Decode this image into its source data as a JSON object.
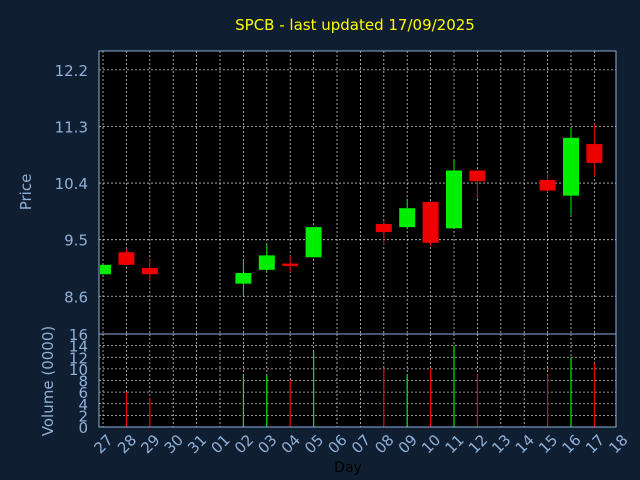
{
  "chart_data": {
    "type": "candlestick",
    "title": "SPCB - last updated 17/09/2025",
    "xlabel": "Day",
    "ylabel_price": "Price",
    "ylabel_volume": "Volume (0000)",
    "x_ticks": [
      "27",
      "28",
      "29",
      "30",
      "31",
      "01",
      "02",
      "03",
      "04",
      "05",
      "06",
      "07",
      "08",
      "09",
      "10",
      "11",
      "12",
      "13",
      "14",
      "15",
      "16",
      "17",
      "18"
    ],
    "price_ticks": [
      "8.6",
      "9.5",
      "10.4",
      "11.3",
      "12.2"
    ],
    "volume_ticks": [
      "0",
      "2",
      "4",
      "6",
      "8",
      "10",
      "12",
      "14",
      "16"
    ],
    "price_range": [
      8.0,
      12.5
    ],
    "volume_range": [
      0,
      16
    ],
    "colors": {
      "up": "#00ee00",
      "down": "#ee0000",
      "title": "#ffff00",
      "axis_text": "#8fb0d8",
      "grid": "#c8c8c8",
      "frame": "#8fb0d8"
    },
    "candles": [
      {
        "day": "27",
        "open": 8.95,
        "high": 9.1,
        "low": 8.95,
        "close": 9.1,
        "volume": 0
      },
      {
        "day": "28",
        "open": 9.3,
        "high": 9.35,
        "low": 9.1,
        "close": 9.1,
        "volume": 6
      },
      {
        "day": "29",
        "open": 9.05,
        "high": 9.2,
        "low": 8.85,
        "close": 8.95,
        "volume": 5
      },
      {
        "day": "02",
        "open": 8.8,
        "high": 9.2,
        "low": 8.6,
        "close": 8.97,
        "volume": 9
      },
      {
        "day": "03",
        "open": 9.02,
        "high": 9.42,
        "low": 9.0,
        "close": 9.25,
        "volume": 9
      },
      {
        "day": "04",
        "open": 9.12,
        "high": 9.25,
        "low": 8.98,
        "close": 9.08,
        "volume": 8
      },
      {
        "day": "05",
        "open": 9.22,
        "high": 9.7,
        "low": 9.22,
        "close": 9.7,
        "volume": 13
      },
      {
        "day": "08",
        "open": 9.75,
        "high": 9.8,
        "low": 9.42,
        "close": 9.62,
        "volume": 10
      },
      {
        "day": "09",
        "open": 9.7,
        "high": 10.15,
        "low": 9.68,
        "close": 10.0,
        "volume": 9
      },
      {
        "day": "10",
        "open": 10.1,
        "high": 10.1,
        "low": 9.4,
        "close": 9.45,
        "volume": 10
      },
      {
        "day": "11",
        "open": 9.68,
        "high": 10.75,
        "low": 9.68,
        "close": 10.6,
        "volume": 14
      },
      {
        "day": "12",
        "open": 10.6,
        "high": 10.6,
        "low": 10.15,
        "close": 10.43,
        "volume": 9
      },
      {
        "day": "15",
        "open": 10.45,
        "high": 10.55,
        "low": 10.25,
        "close": 10.28,
        "volume": 9
      },
      {
        "day": "16",
        "open": 10.2,
        "high": 11.28,
        "low": 9.9,
        "close": 11.12,
        "volume": 12
      },
      {
        "day": "17",
        "open": 11.02,
        "high": 11.35,
        "low": 10.5,
        "close": 10.72,
        "volume": 11
      }
    ]
  }
}
